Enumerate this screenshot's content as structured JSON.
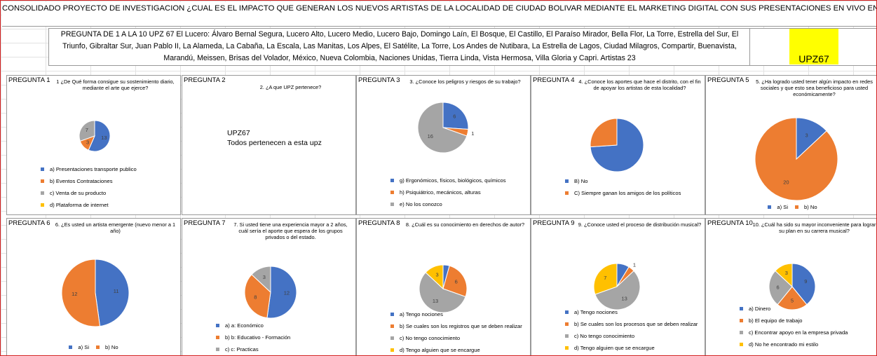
{
  "header": {
    "title": "CONSOLIDADO PROYECTO DE INVESTIGACION ¿CUAL ES EL IMPACTO QUE GENERAN LOS NUEVOS ARTISTAS DE LA LOCALIDAD DE CIUDAD BOLIVAR MEDIANTE EL MARKETING DIGITAL CON SUS PRESENTACIONES EN VIVO EN EL TRANSPORTE PUBLICO DE LA CUIDAD DE BOGOTA",
    "description": "PREGUNTA DE 1 A LA 10  UPZ 67 El Lucero: Álvaro Bernal Segura, Lucero Alto, Lucero Medio, Lucero Bajo, Domingo Laín, El Bosque, El Castillo, El Paraíso Mirador, Bella Flor, La Torre, Estrella del Sur, El Triunfo, Gibraltar Sur, Juan Pablo II, La Alameda, La Cabaña, La Escala, Las Manitas, Los Alpes, El Satélite, La Torre, Los Andes de Nutibara, La Estrella de Lagos, Ciudad Milagros, Compartir, Buenavista, Marandú, Meissen, Brisas del Volador, México, Nueva Colombia, Naciones Unidas, Tierra Linda, Vista Hermosa, Villa Gloria y Capri. Artistas 23",
    "upz": "UPZ67"
  },
  "pregunta_2": {
    "label": "PREGUNTA 2",
    "title": "2.  ¿A que UPZ pertenece?",
    "lines": [
      "UPZ67",
      "Todos pertenecen a esta upz"
    ]
  },
  "chart_data": [
    {
      "type": "pie",
      "label": "PREGUNTA 1",
      "title": "1 ¿De Qué forma consigue su sostenimiento diario, mediante el arte que ejerce?",
      "categories": [
        "a)  Presentaciones transporte publico",
        "b)  Eventos Contrataciones",
        "c)  Venta de su producto",
        "d)  Plataforma de internet"
      ],
      "values": [
        13,
        3,
        7,
        0
      ],
      "value_labels": [
        "13",
        "3",
        "7",
        null
      ],
      "colors": [
        "#4472c4",
        "#ed7d31",
        "#a5a5a5",
        "#ffc000"
      ],
      "legend": "list"
    },
    {
      "type": "pie",
      "label": "PREGUNTA 3",
      "title": "3.  ¿Conoce los peligros y riesgos de su trabajo?",
      "categories": [
        "g)  Ergonómicos, físicos, biológicos, químicos",
        "h)  Psiquiátrico, mecánicos, alturas",
        "e)  No los conozco"
      ],
      "values": [
        6,
        1,
        16
      ],
      "value_labels": [
        "6",
        "1",
        "16"
      ],
      "colors": [
        "#4472c4",
        "#ed7d31",
        "#a5a5a5"
      ],
      "legend": "list"
    },
    {
      "type": "pie",
      "label": "PREGUNTA 4",
      "title": "4.  ¿Conoce los aportes que hace el distrito, con el fin de apoyar los artistas de esta localidad?",
      "categories": [
        "B)  No",
        "C)  Siempre ganan los amigos de los políticos"
      ],
      "values": [
        17,
        6
      ],
      "value_labels": [
        null,
        null
      ],
      "colors": [
        "#4472c4",
        "#ed7d31"
      ],
      "legend": "list"
    },
    {
      "type": "pie",
      "label": "PREGUNTA 5",
      "title": "5.  ¿Ha logrado usted tener algún impacto en redes sociales y que esto sea beneficioso para usted económicamente?",
      "categories": [
        "a)  Si",
        "b)  No"
      ],
      "values": [
        3,
        20
      ],
      "value_labels": [
        "3",
        "20"
      ],
      "colors": [
        "#4472c4",
        "#ed7d31"
      ],
      "legend": "inline"
    },
    {
      "type": "pie",
      "label": "PREGUNTA 6",
      "title": "6.  ¿Es usted un artista emergente (nuevo menor a 1 año)",
      "categories": [
        "a)  Si",
        "b)  No"
      ],
      "values": [
        11,
        12
      ],
      "value_labels": [
        "11",
        "12"
      ],
      "colors": [
        "#4472c4",
        "#ed7d31"
      ],
      "legend": "inline"
    },
    {
      "type": "pie",
      "label": "PREGUNTA 7",
      "title": "7.  Si usted tiene una experiencia mayor a 2 años, cuál sería el aporte que espera de los grupos privados o del estado.",
      "categories": [
        "a)  a: Económico",
        "b)  b: Educativo - Formación",
        "c)  c: Practicas"
      ],
      "values": [
        12,
        8,
        3
      ],
      "value_labels": [
        "12",
        "8",
        "3"
      ],
      "colors": [
        "#4472c4",
        "#ed7d31",
        "#a5a5a5"
      ],
      "legend": "list"
    },
    {
      "type": "pie",
      "label": "PREGUNTA 8",
      "title": "8.  ¿Cuál es su conocimiento en derechos de autor?",
      "categories": [
        "a) Tengo nociones",
        "b)  Se cuales son los registros que se deben realizar",
        "c)  No tengo conocimiento",
        "d)  Tengo alguien que se encargue"
      ],
      "values": [
        1,
        6,
        13,
        3
      ],
      "value_labels": [
        null,
        "6",
        "13",
        "3"
      ],
      "colors": [
        "#4472c4",
        "#ed7d31",
        "#a5a5a5",
        "#ffc000"
      ],
      "legend": "list"
    },
    {
      "type": "pie",
      "label": "PREGUNTA 9",
      "title": "9.  ¿Conoce usted el proceso de distribución musical?",
      "categories": [
        "a)  Tengo nociones",
        "b)  Se cuales son los procesos que se deben realizar",
        "c)  No tengo conocimiento",
        "d)  Tengo alguien que se encargue"
      ],
      "values": [
        2,
        1,
        13,
        7
      ],
      "value_labels": [
        null,
        "1",
        "13",
        "7"
      ],
      "colors": [
        "#4472c4",
        "#ed7d31",
        "#a5a5a5",
        "#ffc000"
      ],
      "legend": "list"
    },
    {
      "type": "pie",
      "label": "PREGUNTA 10",
      "title": "10. ¿Cuál ha sido su mayor inconveniente para lograr su plan en su carrera musical?",
      "categories": [
        "a)  Dinero",
        "b)  El equipo de trabajo",
        "c)  Encontrar apoyo en la empresa privada",
        "d)  No he encontrado mi estilo"
      ],
      "values": [
        9,
        5,
        6,
        3
      ],
      "value_labels": [
        "9",
        "5",
        "6",
        "3"
      ],
      "colors": [
        "#4472c4",
        "#ed7d31",
        "#a5a5a5",
        "#ffc000"
      ],
      "legend": "list"
    }
  ]
}
